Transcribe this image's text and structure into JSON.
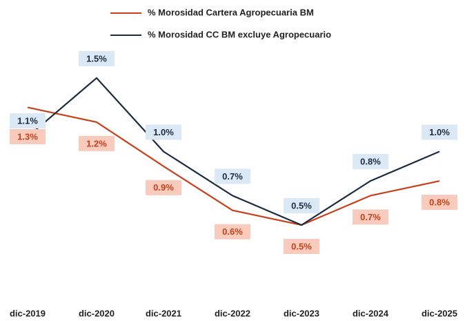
{
  "chart_data": {
    "type": "line",
    "categories": [
      "dic-2019",
      "dic-2020",
      "dic-2021",
      "dic-2022",
      "dic-2023",
      "dic-2024",
      "dic-2025"
    ],
    "series": [
      {
        "name": "% Morosidad Cartera Agropecuaria BM",
        "color": "#c8401a",
        "label_bg": "#f8cbbd",
        "values": [
          1.3,
          1.2,
          0.9,
          0.6,
          0.5,
          0.7,
          0.8
        ],
        "value_labels": [
          "1.3%",
          "1.2%",
          "0.9%",
          "0.6%",
          "0.5%",
          "0.7%",
          "0.8%"
        ]
      },
      {
        "name": "% Morosidad CC BM excluye Agropecuario",
        "color": "#1b2a41",
        "label_bg": "#dbe9f6",
        "values": [
          1.1,
          1.5,
          1.0,
          0.7,
          0.5,
          0.8,
          1.0
        ],
        "value_labels": [
          "1.1%",
          "1.5%",
          "1.0%",
          "0.7%",
          "0.5%",
          "0.8%",
          "1.0%"
        ]
      }
    ],
    "ylim": [
      0,
      2
    ]
  }
}
